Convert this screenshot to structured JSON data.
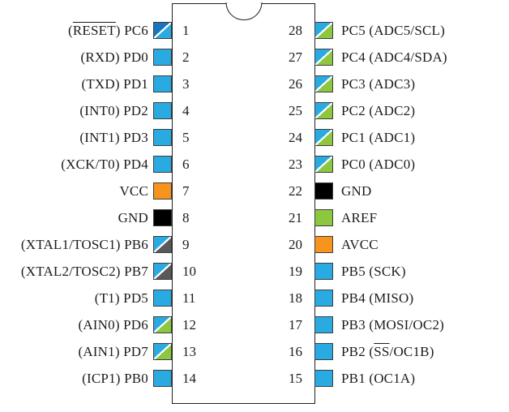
{
  "colors": {
    "io_blue": "#29ABE2",
    "reset_dark_blue": "#1B75BC",
    "power_orange": "#F7941E",
    "ground_black": "#000000",
    "xtal_gray": "#58595B",
    "analog_green": "#8DC63F",
    "outline": "#231F20",
    "background": "#FFFFFF",
    "split_divider": "#FFFFFF"
  },
  "chip": {
    "package": "28-pin dual in-line",
    "left_pins": [
      {
        "number": "1",
        "label_pre": "(",
        "label_over": "RESET",
        "label_post": ") PC6",
        "icon": "reset"
      },
      {
        "number": "2",
        "label_pre": "(RXD) PD0",
        "label_over": "",
        "label_post": "",
        "icon": "io"
      },
      {
        "number": "3",
        "label_pre": "(TXD) PD1",
        "label_over": "",
        "label_post": "",
        "icon": "io"
      },
      {
        "number": "4",
        "label_pre": "(INT0) PD2",
        "label_over": "",
        "label_post": "",
        "icon": "io"
      },
      {
        "number": "5",
        "label_pre": "(INT1) PD3",
        "label_over": "",
        "label_post": "",
        "icon": "io"
      },
      {
        "number": "6",
        "label_pre": "(XCK/T0) PD4",
        "label_over": "",
        "label_post": "",
        "icon": "io"
      },
      {
        "number": "7",
        "label_pre": "VCC",
        "label_over": "",
        "label_post": "",
        "icon": "power"
      },
      {
        "number": "8",
        "label_pre": "GND",
        "label_over": "",
        "label_post": "",
        "icon": "ground"
      },
      {
        "number": "9",
        "label_pre": "(XTAL1/TOSC1) PB6",
        "label_over": "",
        "label_post": "",
        "icon": "xtal"
      },
      {
        "number": "10",
        "label_pre": "(XTAL2/TOSC2) PB7",
        "label_over": "",
        "label_post": "",
        "icon": "xtal"
      },
      {
        "number": "11",
        "label_pre": "(T1) PD5",
        "label_over": "",
        "label_post": "",
        "icon": "io"
      },
      {
        "number": "12",
        "label_pre": "(AIN0) PD6",
        "label_over": "",
        "label_post": "",
        "icon": "analog"
      },
      {
        "number": "13",
        "label_pre": "(AIN1) PD7",
        "label_over": "",
        "label_post": "",
        "icon": "analog"
      },
      {
        "number": "14",
        "label_pre": "(ICP1) PB0",
        "label_over": "",
        "label_post": "",
        "icon": "io"
      }
    ],
    "right_pins": [
      {
        "number": "28",
        "label_pre": "PC5 (ADC5/SCL)",
        "label_over": "",
        "label_post": "",
        "icon": "analog"
      },
      {
        "number": "27",
        "label_pre": "PC4 (ADC4/SDA)",
        "label_over": "",
        "label_post": "",
        "icon": "analog"
      },
      {
        "number": "26",
        "label_pre": "PC3 (ADC3)",
        "label_over": "",
        "label_post": "",
        "icon": "analog"
      },
      {
        "number": "25",
        "label_pre": "PC2 (ADC2)",
        "label_over": "",
        "label_post": "",
        "icon": "analog"
      },
      {
        "number": "24",
        "label_pre": "PC1 (ADC1)",
        "label_over": "",
        "label_post": "",
        "icon": "analog"
      },
      {
        "number": "23",
        "label_pre": "PC0 (ADC0)",
        "label_over": "",
        "label_post": "",
        "icon": "analog"
      },
      {
        "number": "22",
        "label_pre": "GND",
        "label_over": "",
        "label_post": "",
        "icon": "ground"
      },
      {
        "number": "21",
        "label_pre": "AREF",
        "label_over": "",
        "label_post": "",
        "icon": "aref"
      },
      {
        "number": "20",
        "label_pre": "AVCC",
        "label_over": "",
        "label_post": "",
        "icon": "power"
      },
      {
        "number": "19",
        "label_pre": "PB5 (SCK)",
        "label_over": "",
        "label_post": "",
        "icon": "io"
      },
      {
        "number": "18",
        "label_pre": "PB4 (MISO)",
        "label_over": "",
        "label_post": "",
        "icon": "io"
      },
      {
        "number": "17",
        "label_pre": "PB3 (MOSI/OC2)",
        "label_over": "",
        "label_post": "",
        "icon": "io"
      },
      {
        "number": "16",
        "label_pre": "PB2 (",
        "label_over": "SS",
        "label_post": "/OC1B)",
        "icon": "io"
      },
      {
        "number": "15",
        "label_pre": "PB1 (OC1A)",
        "label_over": "",
        "label_post": "",
        "icon": "io"
      }
    ]
  }
}
